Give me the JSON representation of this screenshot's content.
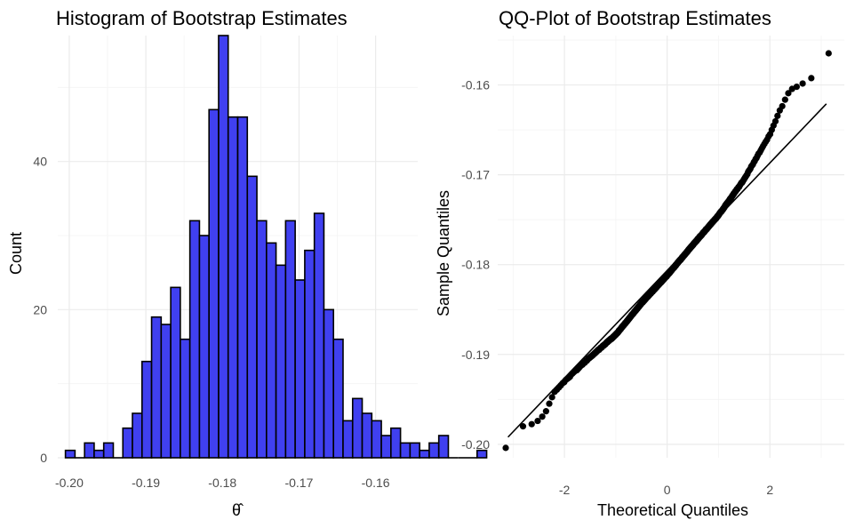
{
  "chart_data": [
    {
      "type": "bar",
      "subtype": "histogram",
      "title": "Histogram of Bootstrap Estimates",
      "xlabel": "θ̂",
      "ylabel": "Count",
      "xlim": [
        -0.2015,
        -0.1545
      ],
      "ylim": [
        0,
        57
      ],
      "bin_width": 0.00125,
      "bins_start": -0.2005,
      "counts": [
        1,
        0,
        2,
        1,
        2,
        0,
        4,
        6,
        13,
        19,
        18,
        23,
        16,
        32,
        30,
        47,
        57,
        46,
        46,
        38,
        32,
        29,
        26,
        32,
        24,
        28,
        33,
        20,
        16,
        5,
        8,
        6,
        5,
        3,
        4,
        2,
        2,
        1,
        2,
        3,
        0,
        0,
        0,
        1
      ],
      "x_ticks": [
        -0.2,
        -0.19,
        -0.18,
        -0.17,
        -0.16
      ],
      "x_tick_labels": [
        "-0.20",
        "-0.19",
        "-0.18",
        "-0.17",
        "-0.16"
      ],
      "y_ticks": [
        0,
        20,
        40
      ],
      "y_tick_labels": [
        "0",
        "20",
        "40"
      ],
      "colors": {
        "fill": "#4040f0",
        "edge": "#000000"
      },
      "grid": true
    },
    {
      "type": "scatter",
      "subtype": "qq-plot",
      "title": "QQ-Plot of Bootstrap Estimates",
      "xlabel": "Theoretical Quantiles",
      "ylabel": "Sample Quantiles",
      "xlim": [
        -3.3,
        3.45
      ],
      "ylim": [
        -0.2015,
        -0.1545
      ],
      "n_points": 600,
      "theoretical_range": [
        -3.1,
        3.1
      ],
      "sample_quantile_knots": {
        "theoretical": [
          -3.1,
          -2.8,
          -2.6,
          -2.4,
          -2.2,
          -2.0,
          -1.5,
          -1.0,
          -0.5,
          0.0,
          0.5,
          1.0,
          1.5,
          2.0,
          2.2,
          2.4,
          2.6,
          2.8,
          3.1
        ],
        "sample": [
          -0.2004,
          -0.1979,
          -0.1978,
          -0.1968,
          -0.1942,
          -0.193,
          -0.1903,
          -0.1878,
          -0.1843,
          -0.1812,
          -0.1778,
          -0.1745,
          -0.1705,
          -0.1655,
          -0.1628,
          -0.1605,
          -0.16,
          -0.1593,
          -0.1565
        ]
      },
      "reference_line": {
        "x": [
          -3.1,
          3.1
        ],
        "y": [
          -0.1992,
          -0.1621
        ]
      },
      "x_ticks": [
        -2,
        0,
        2
      ],
      "x_tick_labels": [
        "-2",
        "0",
        "2"
      ],
      "y_ticks": [
        -0.2,
        -0.19,
        -0.18,
        -0.17,
        -0.16
      ],
      "y_tick_labels": [
        "-0.20",
        "-0.19",
        "-0.18",
        "-0.17",
        "-0.16"
      ],
      "colors": {
        "points": "#000000",
        "line": "#000000"
      },
      "grid": true
    }
  ]
}
